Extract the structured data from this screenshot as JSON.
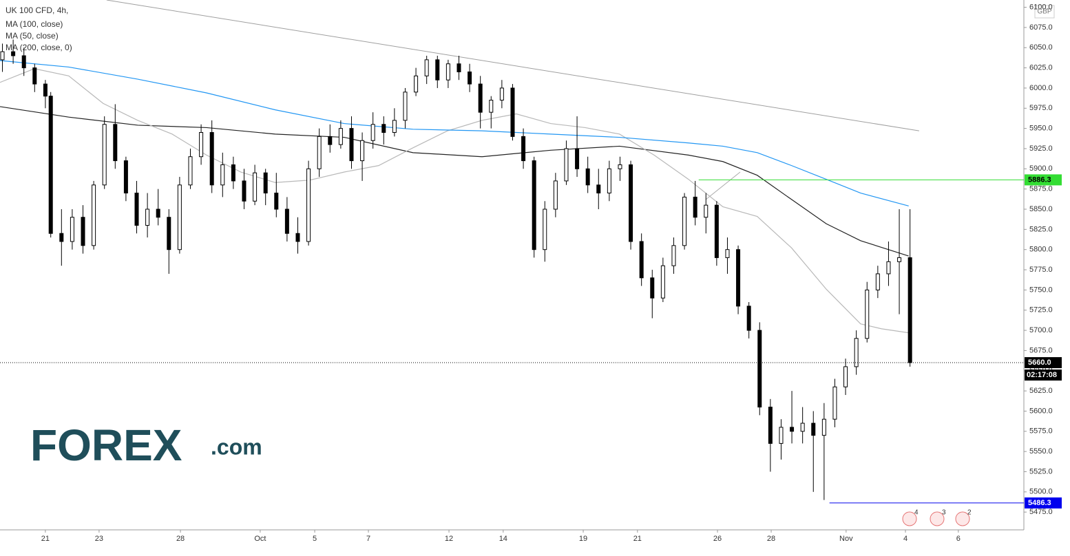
{
  "chart_data": {
    "type": "candlestick",
    "title": "UK 100 CFD, 4h,",
    "indicators": [
      {
        "name": "MA (100, close)",
        "color": "#222222",
        "x": [
          -1.69,
          0.87,
          3.44,
          6.0,
          8.56,
          11.13,
          13.69,
          16.26,
          18.82,
          21.38,
          23.95,
          25.23,
          26.51,
          27.79,
          29.08,
          30.36,
          32.15
        ],
        "values": [
          5977,
          5964,
          5954,
          5951,
          5943,
          5939,
          5920,
          5915,
          5923,
          5928,
          5917,
          5909,
          5892,
          5862,
          5832,
          5811,
          5792
        ]
      },
      {
        "name": "MA (50, close)",
        "color": "#b8b8b8",
        "x": [
          -1.69,
          -0.41,
          0.87,
          2.15,
          3.44,
          4.72,
          6.0,
          7.28,
          8.56,
          9.85,
          11.13,
          12.41,
          13.69,
          14.97,
          16.26,
          17.54,
          18.82,
          20.1,
          21.38,
          22.67,
          23.95,
          25.23,
          26.51,
          27.79,
          29.08,
          30.36,
          31.13,
          32.15
        ],
        "values": [
          6007,
          6024,
          6015,
          5981,
          5960,
          5943,
          5917,
          5896,
          5883,
          5886,
          5896,
          5904,
          5926,
          5947,
          5960,
          5968,
          5956,
          5951,
          5943,
          5917,
          5887,
          5853,
          5841,
          5802,
          5751,
          5708,
          5702,
          5697
        ]
      },
      {
        "name": "MA (200, close, 0)",
        "color": "#2196f3",
        "x": [
          -1.69,
          0.87,
          3.44,
          6.0,
          8.56,
          11.13,
          13.69,
          16.26,
          18.82,
          21.38,
          23.95,
          25.23,
          26.51,
          27.79,
          29.08,
          30.36,
          32.15
        ],
        "values": [
          6034,
          6026,
          6011,
          5994,
          5973,
          5956,
          5949,
          5947,
          5943,
          5939,
          5932,
          5928,
          5920,
          5904,
          5887,
          5870,
          5854
        ]
      }
    ],
    "x": [
      -1.6,
      -1.2,
      -0.8,
      -0.4,
      0.0,
      0.2,
      0.6,
      1.0,
      1.4,
      1.8,
      2.2,
      2.6,
      3.0,
      3.4,
      3.8,
      4.2,
      4.6,
      5.0,
      5.4,
      5.8,
      6.2,
      6.6,
      7.0,
      7.4,
      7.8,
      8.2,
      8.6,
      9.0,
      9.4,
      9.8,
      10.2,
      10.6,
      11.0,
      11.4,
      11.8,
      12.2,
      12.6,
      13.0,
      13.4,
      13.8,
      14.2,
      14.6,
      15.0,
      15.4,
      15.8,
      16.2,
      16.6,
      17.0,
      17.4,
      17.8,
      18.2,
      18.6,
      19.0,
      19.4,
      19.8,
      20.2,
      20.6,
      21.0,
      21.4,
      21.8,
      22.2,
      22.6,
      23.0,
      23.4,
      23.8,
      24.2,
      24.6,
      25.0,
      25.4,
      25.8,
      26.2,
      26.6,
      27.0,
      27.4,
      27.8,
      28.2,
      28.6,
      29.0,
      29.4,
      29.8,
      30.2,
      30.6,
      31.0,
      31.4,
      31.8,
      32.2
    ],
    "open": [
      6035,
      6045,
      6040,
      6025,
      6005,
      5990,
      5820,
      5810,
      5840,
      5805,
      5880,
      5955,
      5910,
      5870,
      5830,
      5850,
      5840,
      5800,
      5880,
      5915,
      5945,
      5880,
      5905,
      5885,
      5860,
      5895,
      5870,
      5850,
      5820,
      5810,
      5900,
      5940,
      5930,
      5950,
      5910,
      5935,
      5955,
      5945,
      5960,
      5995,
      6015,
      6035,
      6010,
      6030,
      6020,
      6005,
      5970,
      5985,
      6000,
      5940,
      5910,
      5800,
      5850,
      5885,
      5925,
      5900,
      5880,
      5870,
      5900,
      5905,
      5810,
      5765,
      5740,
      5780,
      5805,
      5865,
      5840,
      5855,
      5790,
      5800,
      5730,
      5700,
      5605,
      5560,
      5580,
      5575,
      5585,
      5570,
      5590,
      5630,
      5655,
      5690,
      5750,
      5770,
      5785,
      5790
    ],
    "high": [
      6055,
      6060,
      6050,
      6030,
      6010,
      5995,
      5850,
      5850,
      5855,
      5885,
      5965,
      5980,
      5915,
      5885,
      5870,
      5875,
      5850,
      5890,
      5925,
      5955,
      5960,
      5920,
      5915,
      5900,
      5905,
      5900,
      5895,
      5865,
      5840,
      5910,
      5950,
      5955,
      5960,
      5965,
      5945,
      5970,
      5965,
      5975,
      6000,
      6025,
      6040,
      6040,
      6035,
      6040,
      6030,
      6015,
      5990,
      6010,
      6005,
      5950,
      5915,
      5860,
      5895,
      5935,
      5965,
      5915,
      5900,
      5910,
      5915,
      5910,
      5820,
      5775,
      5790,
      5815,
      5870,
      5885,
      5870,
      5860,
      5815,
      5805,
      5735,
      5710,
      5615,
      5590,
      5625,
      5605,
      5600,
      5610,
      5640,
      5665,
      5700,
      5760,
      5780,
      5810,
      5850,
      5850
    ],
    "low": [
      6020,
      6030,
      6015,
      5995,
      5975,
      5815,
      5780,
      5800,
      5795,
      5800,
      5875,
      5900,
      5860,
      5820,
      5815,
      5830,
      5770,
      5795,
      5875,
      5905,
      5870,
      5865,
      5875,
      5850,
      5855,
      5855,
      5840,
      5810,
      5795,
      5805,
      5890,
      5920,
      5925,
      5900,
      5885,
      5925,
      5930,
      5940,
      5950,
      5990,
      6005,
      6000,
      6000,
      6010,
      5995,
      5950,
      5950,
      5975,
      5935,
      5900,
      5790,
      5785,
      5840,
      5880,
      5890,
      5870,
      5850,
      5860,
      5885,
      5800,
      5755,
      5715,
      5735,
      5770,
      5800,
      5830,
      5820,
      5780,
      5770,
      5720,
      5690,
      5595,
      5525,
      5540,
      5560,
      5560,
      5500,
      5490,
      5580,
      5620,
      5645,
      5685,
      5740,
      5755,
      5720,
      5655
    ],
    "close": [
      6045,
      6040,
      6025,
      6005,
      5990,
      5820,
      5810,
      5840,
      5805,
      5880,
      5955,
      5910,
      5870,
      5830,
      5850,
      5840,
      5800,
      5880,
      5915,
      5945,
      5880,
      5905,
      5885,
      5860,
      5895,
      5870,
      5850,
      5820,
      5810,
      5900,
      5940,
      5930,
      5950,
      5910,
      5935,
      5955,
      5945,
      5960,
      5995,
      6015,
      6035,
      6010,
      6030,
      6020,
      6005,
      5970,
      5985,
      6000,
      5940,
      5910,
      5800,
      5850,
      5885,
      5925,
      5900,
      5880,
      5870,
      5900,
      5905,
      5810,
      5765,
      5740,
      5780,
      5805,
      5865,
      5840,
      5855,
      5790,
      5800,
      5730,
      5700,
      5605,
      5560,
      5580,
      5575,
      5585,
      5570,
      5590,
      5630,
      5655,
      5690,
      5750,
      5770,
      5785,
      5790,
      5660
    ],
    "trendline": {
      "x": [
        2.28,
        32.54
      ],
      "values": [
        6109,
        5947
      ],
      "color": "#9e9e9e"
    },
    "levels": [
      {
        "value": 5886.3,
        "label": "5886.3",
        "start": 24.33,
        "color": "#33dd33"
      },
      {
        "value": 5486.3,
        "label": "5486.3",
        "start": 29.2,
        "color": "#0000ee"
      }
    ],
    "last_price": {
      "value": 5660.0,
      "label": "5660.0",
      "countdown": "02:17:08"
    },
    "currency": "GBP",
    "xlim": [
      -1.69,
      36.44
    ],
    "ylim": [
      5453,
      6109
    ],
    "xticks": [
      {
        "value": 0,
        "label": "21"
      },
      {
        "value": 2,
        "label": "23"
      },
      {
        "value": 5.03,
        "label": "28"
      },
      {
        "value": 8.0,
        "label": "Oct"
      },
      {
        "value": 10.03,
        "label": "5"
      },
      {
        "value": 12.03,
        "label": "7"
      },
      {
        "value": 15.03,
        "label": "12"
      },
      {
        "value": 17.05,
        "label": "14"
      },
      {
        "value": 20.03,
        "label": "19"
      },
      {
        "value": 22.05,
        "label": "21"
      },
      {
        "value": 25.03,
        "label": "26"
      },
      {
        "value": 27.03,
        "label": "28"
      },
      {
        "value": 29.82,
        "label": "Nov"
      },
      {
        "value": 32.03,
        "label": "4"
      },
      {
        "value": 34.0,
        "label": "6"
      }
    ],
    "yticks": [
      {
        "value": 5475,
        "label": "5475.0"
      },
      {
        "value": 5500,
        "label": "5500.0"
      },
      {
        "value": 5525,
        "label": "5525.0"
      },
      {
        "value": 5550,
        "label": "5550.0"
      },
      {
        "value": 5575,
        "label": "5575.0"
      },
      {
        "value": 5600,
        "label": "5600.0"
      },
      {
        "value": 5625,
        "label": "5625.0"
      },
      {
        "value": 5650,
        "label": "5650.0"
      },
      {
        "value": 5675,
        "label": "5675.0"
      },
      {
        "value": 5700,
        "label": "5700.0"
      },
      {
        "value": 5725,
        "label": "5725.0"
      },
      {
        "value": 5750,
        "label": "5750.0"
      },
      {
        "value": 5775,
        "label": "5775.0"
      },
      {
        "value": 5800,
        "label": "5800.0"
      },
      {
        "value": 5825,
        "label": "5825.0"
      },
      {
        "value": 5850,
        "label": "5850.0"
      },
      {
        "value": 5875,
        "label": "5875.0"
      },
      {
        "value": 5900,
        "label": "5900.0"
      },
      {
        "value": 5925,
        "label": "5925.0"
      },
      {
        "value": 5950,
        "label": "5950.0"
      },
      {
        "value": 5975,
        "label": "5975.0"
      },
      {
        "value": 6000,
        "label": "6000.0"
      },
      {
        "value": 6025,
        "label": "6025.0"
      },
      {
        "value": 6050,
        "label": "6050.0"
      },
      {
        "value": 6075,
        "label": "6075.0"
      },
      {
        "value": 6100,
        "label": "6100.0"
      }
    ],
    "grid": false,
    "event_counts": [
      4,
      3,
      2
    ],
    "logo": {
      "brand": "FOREX",
      "suffix": ".com"
    }
  }
}
